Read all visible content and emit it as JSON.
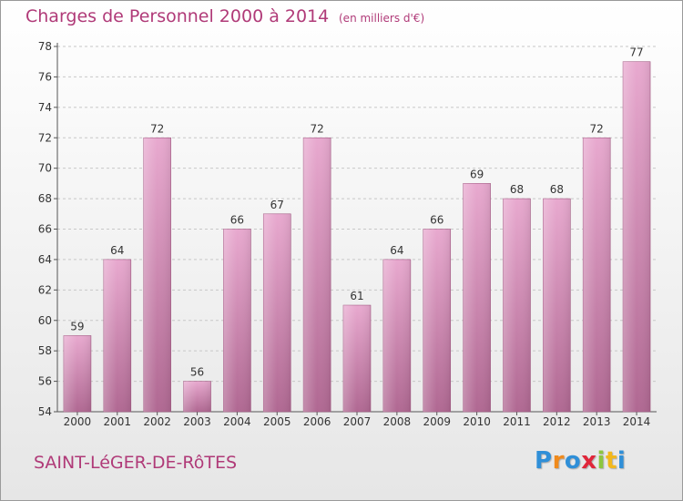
{
  "header": {
    "title": "Charges de Personnel 2000 à 2014",
    "subtitle": "(en milliers d'€)"
  },
  "footer": {
    "commune": "SAINT-LéGER-DE-RôTES",
    "logo_letters": [
      "P",
      "r",
      "o",
      "x",
      "i",
      "t",
      "i"
    ],
    "logo_colors": [
      "#2f8fd8",
      "#f08a1c",
      "#2f8fd8",
      "#e0263a",
      "#8cc63f",
      "#f2b81c",
      "#2f8fd8"
    ]
  },
  "chart_data": {
    "type": "bar",
    "title": "Charges de Personnel 2000 à 2014",
    "subtitle": "(en milliers d'€)",
    "categories": [
      "2000",
      "2001",
      "2002",
      "2003",
      "2004",
      "2005",
      "2006",
      "2007",
      "2008",
      "2009",
      "2010",
      "2011",
      "2012",
      "2013",
      "2014"
    ],
    "values": [
      59,
      64,
      72,
      56,
      66,
      67,
      72,
      61,
      64,
      66,
      69,
      68,
      68,
      72,
      77
    ],
    "ylim": [
      54,
      78
    ],
    "yticks": [
      54,
      56,
      58,
      60,
      62,
      64,
      66,
      68,
      70,
      72,
      74,
      76,
      78
    ],
    "grid": true,
    "bar_color": "#d98bb5",
    "bar_color_dark": "#b3668f"
  }
}
